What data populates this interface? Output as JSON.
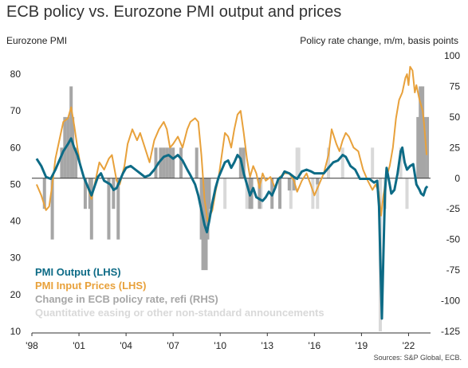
{
  "chart_data": {
    "type": "line",
    "title": "ECB policy vs. Eurozone PMI output and prices",
    "ylabel_left": "Eurozone PMI",
    "ylabel_right": "Policy rate change, m/m, basis points",
    "source": "Sources: S&P Global, ECB.",
    "x_ticks": [
      "'98",
      "'01",
      "'04",
      "'07",
      "'10",
      "'13",
      "'16",
      "'19",
      "'22"
    ],
    "x_range": [
      1998.0,
      2023.4
    ],
    "left_ticks": [
      "10",
      "20",
      "30",
      "40",
      "50",
      "60",
      "70",
      "80"
    ],
    "left_range": [
      10,
      85
    ],
    "right_ticks": [
      "100",
      "75",
      "50",
      "25",
      "0",
      "-25",
      "-50",
      "-75",
      "-100",
      "-125"
    ],
    "right_range": [
      -125,
      100
    ],
    "grid": false,
    "legend_position": "bottom-left",
    "colors": {
      "output": "#0d6b86",
      "input": "#e8a13b",
      "policy": "#a6a6a6",
      "qe": "#d9d9d9",
      "zero_line": "#333333"
    },
    "series": [
      {
        "name": "PMI  Output (LHS)",
        "axis": "left",
        "points": [
          [
            1998.3,
            57
          ],
          [
            1998.6,
            55
          ],
          [
            1998.9,
            52
          ],
          [
            1999.2,
            51.5
          ],
          [
            1999.5,
            54
          ],
          [
            1999.8,
            57
          ],
          [
            2000.0,
            59
          ],
          [
            2000.3,
            61
          ],
          [
            2000.5,
            62.5
          ],
          [
            2000.7,
            60
          ],
          [
            2000.9,
            58
          ],
          [
            2001.1,
            55
          ],
          [
            2001.3,
            52
          ],
          [
            2001.5,
            50
          ],
          [
            2001.8,
            47
          ],
          [
            2002.0,
            49.5
          ],
          [
            2002.2,
            52
          ],
          [
            2002.4,
            53
          ],
          [
            2002.6,
            51
          ],
          [
            2002.8,
            50.5
          ],
          [
            2003.0,
            50
          ],
          [
            2003.2,
            48.5
          ],
          [
            2003.4,
            49
          ],
          [
            2003.6,
            51
          ],
          [
            2003.8,
            53
          ],
          [
            2004.0,
            54.5
          ],
          [
            2004.3,
            55
          ],
          [
            2004.6,
            54
          ],
          [
            2004.9,
            53
          ],
          [
            2005.2,
            52
          ],
          [
            2005.5,
            52.5
          ],
          [
            2005.8,
            54
          ],
          [
            2006.1,
            56
          ],
          [
            2006.4,
            57.5
          ],
          [
            2006.7,
            58
          ],
          [
            2007.0,
            57
          ],
          [
            2007.3,
            58
          ],
          [
            2007.6,
            56.5
          ],
          [
            2007.9,
            54
          ],
          [
            2008.1,
            52.5
          ],
          [
            2008.4,
            50
          ],
          [
            2008.6,
            47
          ],
          [
            2008.8,
            43
          ],
          [
            2009.0,
            39
          ],
          [
            2009.15,
            37
          ],
          [
            2009.3,
            40
          ],
          [
            2009.5,
            45
          ],
          [
            2009.7,
            49
          ],
          [
            2009.9,
            52
          ],
          [
            2010.1,
            54
          ],
          [
            2010.3,
            56
          ],
          [
            2010.5,
            56.5
          ],
          [
            2010.7,
            54.5
          ],
          [
            2010.9,
            56
          ],
          [
            2011.1,
            58
          ],
          [
            2011.3,
            57
          ],
          [
            2011.5,
            53
          ],
          [
            2011.7,
            50
          ],
          [
            2011.9,
            47
          ],
          [
            2012.1,
            49
          ],
          [
            2012.3,
            46.5
          ],
          [
            2012.5,
            46
          ],
          [
            2012.7,
            45.5
          ],
          [
            2012.9,
            46.5
          ],
          [
            2013.1,
            48
          ],
          [
            2013.3,
            47
          ],
          [
            2013.5,
            49
          ],
          [
            2013.7,
            51.5
          ],
          [
            2013.9,
            52
          ],
          [
            2014.1,
            53.5
          ],
          [
            2014.4,
            53
          ],
          [
            2014.7,
            52
          ],
          [
            2014.9,
            51.5
          ],
          [
            2015.2,
            53.5
          ],
          [
            2015.5,
            54
          ],
          [
            2015.8,
            53.5
          ],
          [
            2016.0,
            53
          ],
          [
            2016.3,
            53
          ],
          [
            2016.6,
            53
          ],
          [
            2016.9,
            54.5
          ],
          [
            2017.2,
            56
          ],
          [
            2017.5,
            56.5
          ],
          [
            2017.8,
            58
          ],
          [
            2018.0,
            57.5
          ],
          [
            2018.3,
            55
          ],
          [
            2018.6,
            54
          ],
          [
            2018.9,
            51.5
          ],
          [
            2019.2,
            51.5
          ],
          [
            2019.5,
            51.5
          ],
          [
            2019.8,
            50.5
          ],
          [
            2020.0,
            51
          ],
          [
            2020.12,
            44
          ],
          [
            2020.2,
            29.5
          ],
          [
            2020.3,
            13.5
          ],
          [
            2020.4,
            31
          ],
          [
            2020.5,
            48
          ],
          [
            2020.6,
            54.5
          ],
          [
            2020.8,
            50
          ],
          [
            2020.9,
            47.5
          ],
          [
            2021.1,
            48.5
          ],
          [
            2021.3,
            53
          ],
          [
            2021.5,
            59
          ],
          [
            2021.6,
            60
          ],
          [
            2021.75,
            56
          ],
          [
            2021.9,
            54
          ],
          [
            2022.1,
            55
          ],
          [
            2022.3,
            55.5
          ],
          [
            2022.5,
            50
          ],
          [
            2022.7,
            48.5
          ],
          [
            2022.8,
            47.5
          ],
          [
            2022.95,
            47
          ],
          [
            2023.1,
            49
          ],
          [
            2023.2,
            49.5
          ]
        ]
      },
      {
        "name": "PMI  Input Prices (LHS)",
        "axis": "left",
        "points": [
          [
            1998.3,
            50
          ],
          [
            1998.6,
            47
          ],
          [
            1998.9,
            43
          ],
          [
            1999.1,
            44
          ],
          [
            1999.3,
            50
          ],
          [
            1999.5,
            57
          ],
          [
            1999.8,
            63
          ],
          [
            2000.0,
            67
          ],
          [
            2000.3,
            68
          ],
          [
            2000.5,
            71
          ],
          [
            2000.7,
            66
          ],
          [
            2000.9,
            60
          ],
          [
            2001.1,
            55
          ],
          [
            2001.3,
            52
          ],
          [
            2001.5,
            50
          ],
          [
            2001.8,
            46
          ],
          [
            2002.0,
            50
          ],
          [
            2002.3,
            56
          ],
          [
            2002.6,
            54
          ],
          [
            2002.9,
            57
          ],
          [
            2003.1,
            58
          ],
          [
            2003.4,
            51
          ],
          [
            2003.6,
            50
          ],
          [
            2003.9,
            55
          ],
          [
            2004.1,
            61
          ],
          [
            2004.4,
            65
          ],
          [
            2004.7,
            62
          ],
          [
            2004.9,
            64
          ],
          [
            2005.2,
            60
          ],
          [
            2005.5,
            56
          ],
          [
            2005.8,
            62
          ],
          [
            2006.1,
            65
          ],
          [
            2006.4,
            67
          ],
          [
            2006.6,
            65
          ],
          [
            2006.8,
            60
          ],
          [
            2007.0,
            61
          ],
          [
            2007.3,
            63
          ],
          [
            2007.6,
            60
          ],
          [
            2007.9,
            65
          ],
          [
            2008.1,
            67
          ],
          [
            2008.4,
            68
          ],
          [
            2008.6,
            67
          ],
          [
            2008.8,
            58
          ],
          [
            2009.0,
            46
          ],
          [
            2009.2,
            40
          ],
          [
            2009.5,
            43
          ],
          [
            2009.7,
            48
          ],
          [
            2009.9,
            52
          ],
          [
            2010.1,
            58
          ],
          [
            2010.3,
            64
          ],
          [
            2010.5,
            63
          ],
          [
            2010.7,
            60
          ],
          [
            2010.9,
            65
          ],
          [
            2011.1,
            69
          ],
          [
            2011.3,
            70
          ],
          [
            2011.5,
            64
          ],
          [
            2011.7,
            57
          ],
          [
            2011.9,
            52
          ],
          [
            2012.1,
            55
          ],
          [
            2012.3,
            53
          ],
          [
            2012.5,
            49
          ],
          [
            2012.7,
            53
          ],
          [
            2012.9,
            51
          ],
          [
            2013.2,
            52
          ],
          [
            2013.5,
            49
          ],
          [
            2013.8,
            52
          ],
          [
            2014.1,
            53
          ],
          [
            2014.4,
            53
          ],
          [
            2014.7,
            51
          ],
          [
            2014.9,
            48
          ],
          [
            2015.2,
            51
          ],
          [
            2015.5,
            53
          ],
          [
            2015.8,
            49.5
          ],
          [
            2016.0,
            47
          ],
          [
            2016.3,
            50
          ],
          [
            2016.6,
            53
          ],
          [
            2016.9,
            58
          ],
          [
            2017.1,
            65
          ],
          [
            2017.4,
            61
          ],
          [
            2017.6,
            59
          ],
          [
            2017.8,
            62
          ],
          [
            2018.0,
            64
          ],
          [
            2018.2,
            63
          ],
          [
            2018.5,
            60
          ],
          [
            2018.8,
            59
          ],
          [
            2019.1,
            54
          ],
          [
            2019.4,
            51
          ],
          [
            2019.7,
            48.5
          ],
          [
            2019.9,
            50
          ],
          [
            2020.1,
            48
          ],
          [
            2020.25,
            41.5
          ],
          [
            2020.4,
            47
          ],
          [
            2020.6,
            52
          ],
          [
            2020.8,
            55
          ],
          [
            2021.0,
            60
          ],
          [
            2021.2,
            68
          ],
          [
            2021.4,
            73
          ],
          [
            2021.6,
            75
          ],
          [
            2021.8,
            79
          ],
          [
            2021.9,
            80
          ],
          [
            2022.0,
            77
          ],
          [
            2022.1,
            82
          ],
          [
            2022.25,
            81
          ],
          [
            2022.4,
            75
          ],
          [
            2022.5,
            77
          ],
          [
            2022.7,
            73
          ],
          [
            2022.9,
            70
          ],
          [
            2023.0,
            66
          ],
          [
            2023.15,
            58
          ]
        ]
      }
    ],
    "bars": [
      {
        "name": "Change in ECB policy rate, refi (RHS)",
        "axis": "right",
        "values": [
          [
            1998.8,
            -25
          ],
          [
            1999.3,
            -50
          ],
          [
            1999.9,
            25
          ],
          [
            2000.1,
            50
          ],
          [
            2000.3,
            50
          ],
          [
            2000.5,
            75
          ],
          [
            2000.6,
            50
          ],
          [
            2000.8,
            25
          ],
          [
            2001.4,
            -25
          ],
          [
            2001.7,
            -25
          ],
          [
            2001.8,
            -50
          ],
          [
            2002.9,
            -50
          ],
          [
            2003.2,
            -25
          ],
          [
            2003.5,
            -50
          ],
          [
            2005.9,
            25
          ],
          [
            2006.2,
            25
          ],
          [
            2006.4,
            25
          ],
          [
            2006.6,
            25
          ],
          [
            2006.8,
            25
          ],
          [
            2007.0,
            25
          ],
          [
            2007.5,
            25
          ],
          [
            2008.5,
            25
          ],
          [
            2008.8,
            -50
          ],
          [
            2008.9,
            -75
          ],
          [
            2009.0,
            -50
          ],
          [
            2009.1,
            -75
          ],
          [
            2009.2,
            -50
          ],
          [
            2009.3,
            -25
          ],
          [
            2011.3,
            25
          ],
          [
            2011.5,
            25
          ],
          [
            2011.9,
            -25
          ],
          [
            2012.0,
            -25
          ],
          [
            2012.5,
            -25
          ],
          [
            2013.3,
            -25
          ],
          [
            2013.8,
            -25
          ],
          [
            2014.4,
            -10
          ],
          [
            2014.7,
            -10
          ],
          [
            2016.2,
            -5
          ],
          [
            2022.6,
            50
          ],
          [
            2022.75,
            75
          ],
          [
            2022.9,
            75
          ],
          [
            2023.0,
            50
          ],
          [
            2023.2,
            50
          ]
        ]
      },
      {
        "name": "Quantitative easing or other non-standard announcements",
        "axis": "right",
        "values": [
          [
            2010.3,
            -25
          ],
          [
            2011.7,
            -25
          ],
          [
            2011.95,
            -25
          ],
          [
            2012.6,
            -25
          ],
          [
            2014.5,
            -25
          ],
          [
            2014.9,
            25
          ],
          [
            2015.0,
            25
          ],
          [
            2015.9,
            -25
          ],
          [
            2016.2,
            -25
          ],
          [
            2016.9,
            25
          ],
          [
            2017.8,
            25
          ],
          [
            2019.7,
            25
          ],
          [
            2020.2,
            -125
          ],
          [
            2020.5,
            -25
          ],
          [
            2021.5,
            25
          ],
          [
            2021.9,
            -25
          ]
        ]
      }
    ]
  }
}
